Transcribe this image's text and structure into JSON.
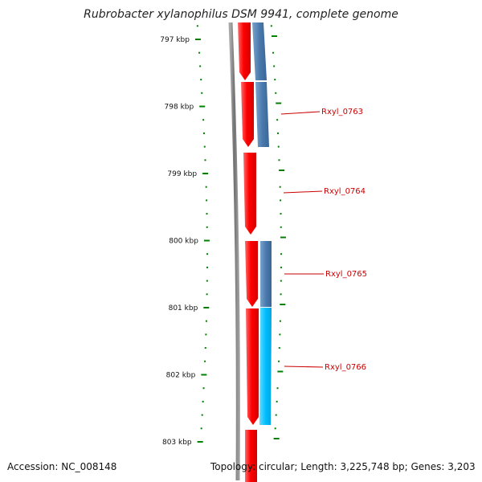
{
  "title": "Rubrobacter xylanophilus DSM 9941, complete genome",
  "footer": {
    "accession": "Accession: NC_008148",
    "topology": "Topology: circular; Length: 3,225,748 bp; Genes: 3,203"
  },
  "ticks": [
    "797 kbp",
    "798 kbp",
    "799 kbp",
    "800 kbp",
    "801 kbp",
    "802 kbp",
    "803 kbp"
  ],
  "gene_labels": [
    "Rxyl_0763",
    "Rxyl_0764",
    "Rxyl_0765",
    "Rxyl_0766"
  ],
  "colors": {
    "forward_gene": "#ff0000",
    "reverse_gene_dark": "#4a7aad",
    "reverse_gene_light": "#00bfff",
    "backbone": "#808080",
    "tick": "#008000",
    "label_line": "#cc0000"
  }
}
